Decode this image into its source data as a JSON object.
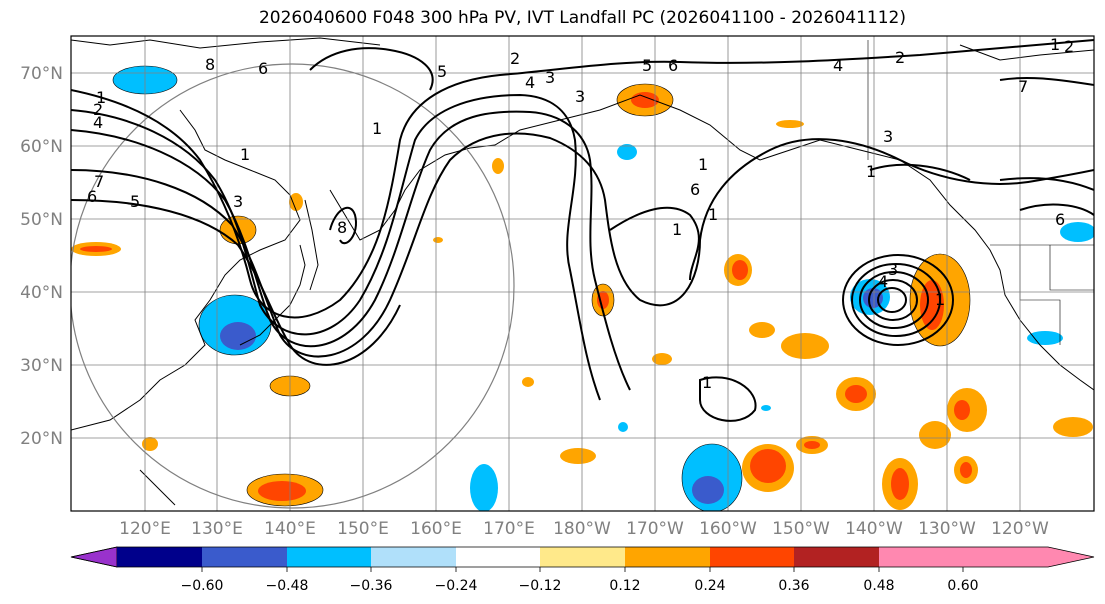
{
  "title": "2026040600 F048 300 hPa PV, IVT Landfall PC (2026041100 - 2026041112)",
  "lat_labels": [
    "70°N",
    "60°N",
    "50°N",
    "40°N",
    "30°N",
    "20°N"
  ],
  "lon_labels": [
    "120°E",
    "130°E",
    "140°E",
    "150°E",
    "160°E",
    "170°E",
    "180°W",
    "170°W",
    "160°W",
    "150°W",
    "140°W",
    "130°W",
    "120°W"
  ],
  "colorbar": {
    "ticks": [
      "−0.60",
      "−0.48",
      "−0.36",
      "−0.24",
      "−0.12",
      "0.12",
      "0.24",
      "0.36",
      "0.48",
      "0.60"
    ],
    "colors": [
      "#9932cc",
      "#00008b",
      "#3a5bcc",
      "#00bfff",
      "#b0e0fa",
      "#ffffff",
      "#ffe98a",
      "#ffa500",
      "#ff4500",
      "#b22222",
      "#ff88b0"
    ]
  },
  "contour_labels": [
    "1",
    "2",
    "4",
    "7",
    "6",
    "5",
    "8",
    "1",
    "3",
    "8",
    "2",
    "4",
    "3",
    "5",
    "6",
    "2",
    "4",
    "3",
    "1",
    "6",
    "1",
    "1",
    "3",
    "4",
    "1",
    "3",
    "1",
    "1",
    "1",
    "2",
    "7",
    "5",
    "6",
    "6",
    "1"
  ]
}
